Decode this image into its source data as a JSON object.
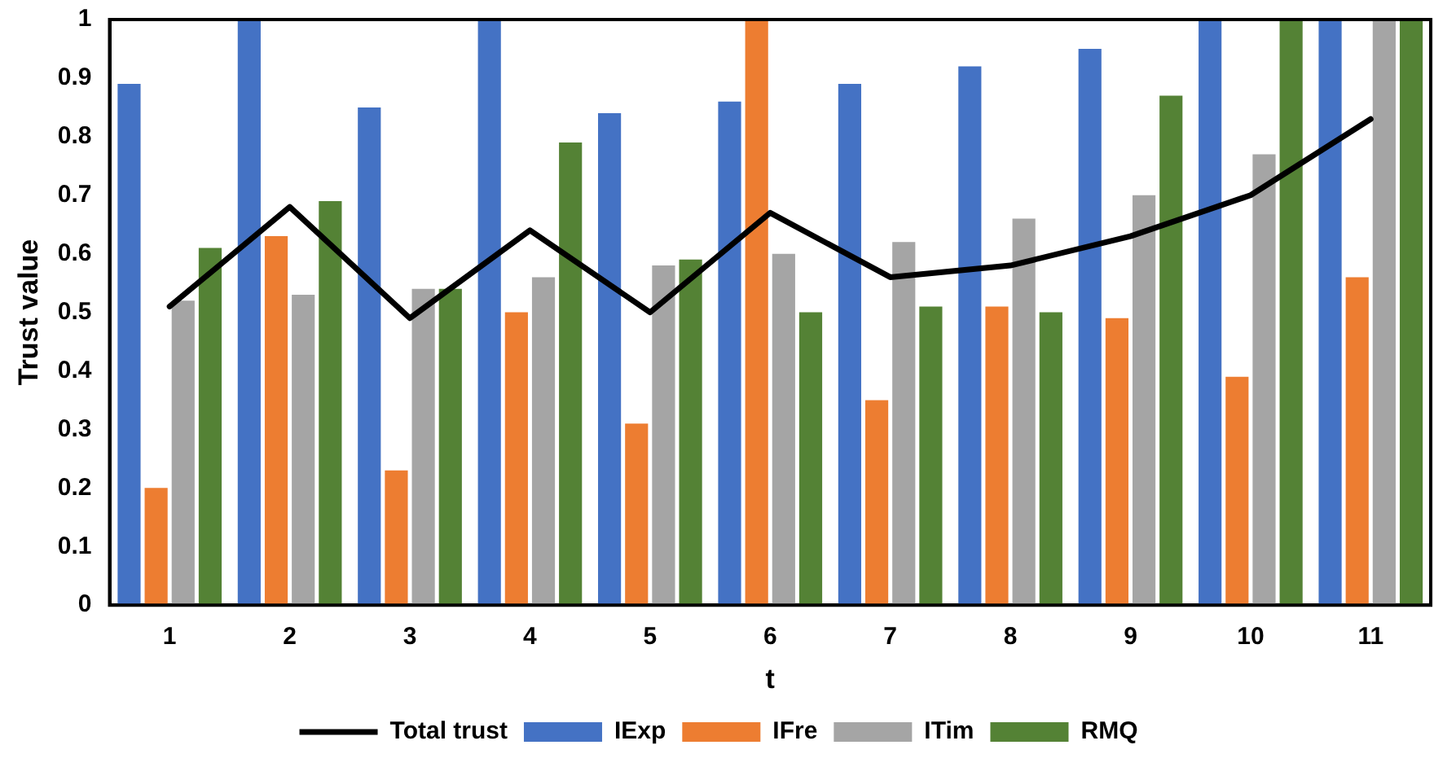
{
  "chart_data": {
    "type": "bar",
    "xlabel": "t",
    "ylabel": "Trust value",
    "categories": [
      "1",
      "2",
      "3",
      "4",
      "5",
      "6",
      "7",
      "8",
      "9",
      "10",
      "11"
    ],
    "series": [
      {
        "name": "IExp",
        "color": "#4472c4",
        "values": [
          0.89,
          1,
          0.85,
          1,
          0.84,
          0.86,
          0.89,
          0.92,
          0.95,
          1,
          1
        ]
      },
      {
        "name": "IFre",
        "color": "#ed7d31",
        "values": [
          0.2,
          0.63,
          0.23,
          0.5,
          0.31,
          1,
          0.35,
          0.51,
          0.49,
          0.39,
          0.56
        ]
      },
      {
        "name": "ITim",
        "color": "#a5a5a5",
        "values": [
          0.52,
          0.53,
          0.54,
          0.56,
          0.58,
          0.6,
          0.62,
          0.66,
          0.7,
          0.77,
          1
        ]
      },
      {
        "name": "RMQ",
        "color": "#548235",
        "values": [
          0.61,
          0.69,
          0.54,
          0.79,
          0.59,
          0.5,
          0.51,
          0.5,
          0.87,
          1,
          1
        ]
      },
      {
        "name": "Total trust",
        "type": "line",
        "color": "#000000",
        "values": [
          0.51,
          0.68,
          0.49,
          0.64,
          0.5,
          0.67,
          0.56,
          0.58,
          0.63,
          0.7,
          0.83
        ]
      }
    ],
    "ylim": [
      0,
      1
    ],
    "yticks": [
      0,
      0.1,
      0.2,
      0.3,
      0.4,
      0.5,
      0.6,
      0.7,
      0.8,
      0.9,
      1
    ],
    "grid": false,
    "legend": "bottom",
    "marker": "none",
    "line_style": "solid"
  }
}
